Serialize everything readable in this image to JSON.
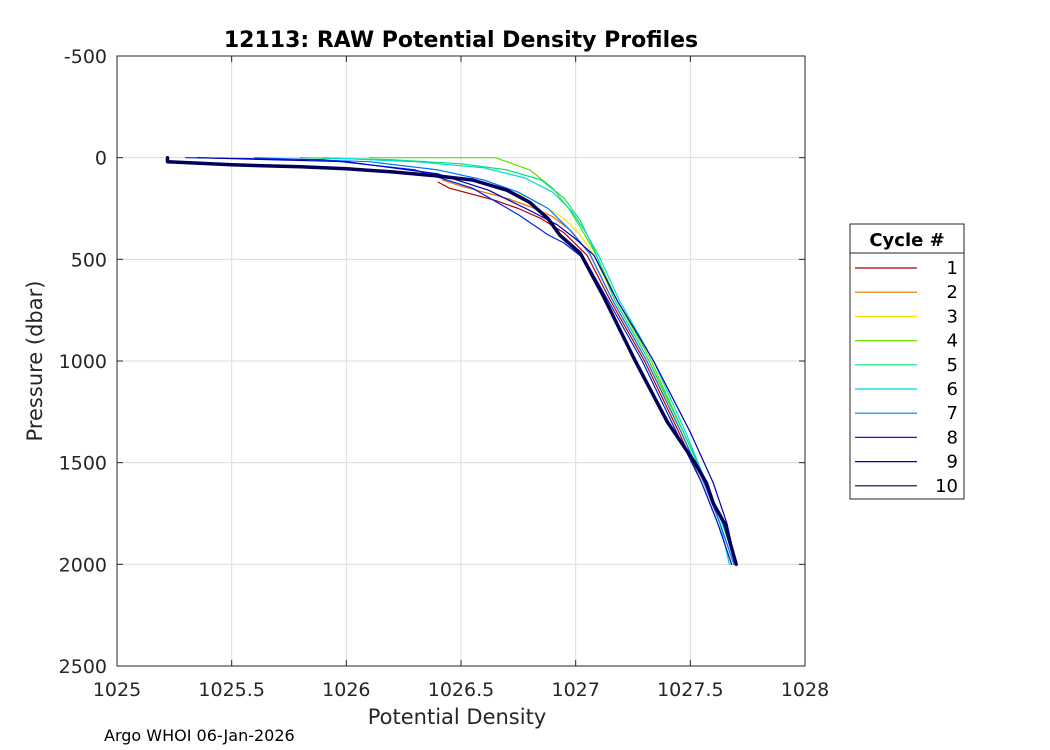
{
  "chart_data": {
    "type": "line",
    "title": "12113: RAW Potential Density Profiles",
    "xlabel": "Potential Density",
    "ylabel": "Pressure (dbar)",
    "xlim": [
      1025,
      1028
    ],
    "ylim": [
      -500,
      2500
    ],
    "y_reversed": true,
    "x_ticks": [
      "1025",
      "1025.5",
      "1026",
      "1026.5",
      "1027",
      "1027.5",
      "1028"
    ],
    "y_ticks": [
      "-500",
      "0",
      "500",
      "1000",
      "1500",
      "2000",
      "2500"
    ],
    "grid": true,
    "legend_title": "Cycle #",
    "legend_position": "right",
    "footer": "Argo WHOI 06-Jan-2026",
    "series": [
      {
        "name": "1",
        "color": "#b40000",
        "x": [
          1026.4,
          1026.45,
          1026.55,
          1026.65,
          1026.75,
          1026.85,
          1026.95,
          1027.05,
          1027.15,
          1027.3,
          1027.45,
          1027.55,
          1027.62,
          1027.68
        ],
        "y": [
          120,
          150,
          180,
          210,
          250,
          300,
          370,
          480,
          700,
          1000,
          1350,
          1600,
          1800,
          2000
        ]
      },
      {
        "name": "2",
        "color": "#e67300",
        "x": [
          1026.42,
          1026.5,
          1026.6,
          1026.7,
          1026.8,
          1026.9,
          1026.98,
          1027.06,
          1027.16,
          1027.31,
          1027.46,
          1027.56,
          1027.63,
          1027.69
        ],
        "y": [
          110,
          140,
          170,
          200,
          240,
          290,
          360,
          470,
          700,
          1000,
          1350,
          1600,
          1800,
          2000
        ]
      },
      {
        "name": "3",
        "color": "#f2e600",
        "x": [
          1026.5,
          1026.6,
          1026.7,
          1026.8,
          1026.88,
          1026.95,
          1027.02,
          1027.08,
          1027.17,
          1027.32,
          1027.46,
          1027.56,
          1027.63,
          1027.69
        ],
        "y": [
          100,
          130,
          160,
          200,
          250,
          300,
          380,
          480,
          700,
          1000,
          1350,
          1600,
          1800,
          2000
        ]
      },
      {
        "name": "4",
        "color": "#66dd00",
        "x": [
          1026.1,
          1026.4,
          1026.65,
          1026.8,
          1026.9,
          1026.97,
          1027.03,
          1027.09,
          1027.18,
          1027.33,
          1027.47,
          1027.57,
          1027.64,
          1027.7
        ],
        "y": [
          0,
          0,
          0,
          60,
          150,
          250,
          360,
          480,
          700,
          1000,
          1350,
          1600,
          1800,
          2000
        ]
      },
      {
        "name": "5",
        "color": "#00e07a",
        "x": [
          1025.8,
          1026.2,
          1026.5,
          1026.7,
          1026.85,
          1026.95,
          1027.02,
          1027.08,
          1027.17,
          1027.32,
          1027.47,
          1027.57,
          1027.64,
          1027.7
        ],
        "y": [
          0,
          10,
          30,
          60,
          110,
          200,
          310,
          450,
          700,
          1000,
          1350,
          1600,
          1800,
          2000
        ]
      },
      {
        "name": "6",
        "color": "#00d8d8",
        "x": [
          1025.9,
          1026.3,
          1026.6,
          1026.78,
          1026.9,
          1026.98,
          1027.04,
          1027.1,
          1027.19,
          1027.34,
          1027.48,
          1027.57,
          1027.63,
          1027.67
        ],
        "y": [
          0,
          20,
          50,
          100,
          170,
          260,
          360,
          480,
          700,
          1000,
          1350,
          1600,
          1800,
          2000
        ]
      },
      {
        "name": "7",
        "color": "#0077ff",
        "x": [
          1025.6,
          1026.1,
          1026.4,
          1026.6,
          1026.75,
          1026.88,
          1026.97,
          1027.06,
          1027.16,
          1027.31,
          1027.46,
          1027.56,
          1027.63,
          1027.69
        ],
        "y": [
          0,
          20,
          60,
          110,
          170,
          250,
          350,
          470,
          700,
          1000,
          1350,
          1600,
          1800,
          2000
        ]
      },
      {
        "name": "8",
        "color": "#0022e6",
        "x": [
          1025.3,
          1025.9,
          1026.3,
          1026.55,
          1026.75,
          1026.88,
          1026.95,
          1027.04,
          1027.14,
          1027.29,
          1027.44,
          1027.55,
          1027.62,
          1027.68
        ],
        "y": [
          0,
          10,
          60,
          150,
          280,
          380,
          420,
          500,
          700,
          1000,
          1350,
          1600,
          1800,
          2000
        ]
      },
      {
        "name": "9",
        "color": "#0000b8",
        "x": [
          1025.35,
          1026.0,
          1026.4,
          1026.62,
          1026.8,
          1026.92,
          1027.0,
          1027.08,
          1027.18,
          1027.34,
          1027.5,
          1027.6,
          1027.66,
          1027.7
        ],
        "y": [
          0,
          20,
          80,
          160,
          260,
          330,
          400,
          480,
          700,
          1000,
          1350,
          1600,
          1800,
          2000
        ]
      },
      {
        "name": "10",
        "color": "#00005a",
        "x": [
          1025.22,
          1025.22,
          1025.5,
          1025.8,
          1026.0,
          1026.2,
          1026.4,
          1026.55,
          1026.7,
          1026.8,
          1026.88,
          1026.93,
          1027.02,
          1027.12,
          1027.26,
          1027.4,
          1027.52,
          1027.57,
          1027.6,
          1027.65,
          1027.7
        ],
        "y": [
          0,
          20,
          35,
          45,
          55,
          70,
          90,
          110,
          160,
          220,
          300,
          380,
          470,
          680,
          1000,
          1300,
          1500,
          1600,
          1700,
          1800,
          2000
        ],
        "bold": true
      }
    ]
  }
}
